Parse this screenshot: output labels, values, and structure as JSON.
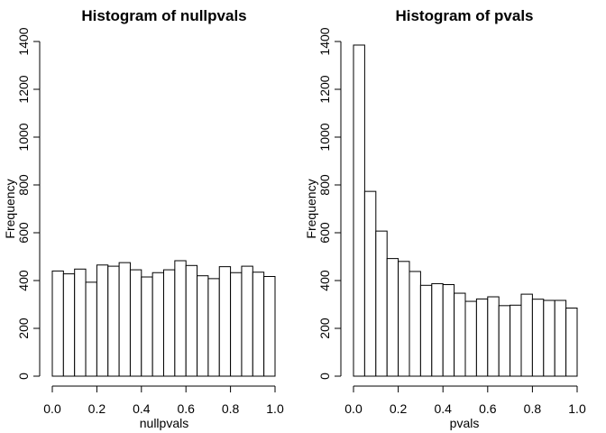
{
  "chart_data": [
    {
      "type": "bar",
      "title": "Histogram of nullpvals",
      "xlabel": "nullpvals",
      "ylabel": "Frequency",
      "xlim": [
        0,
        1
      ],
      "ylim": [
        0,
        1400
      ],
      "x_ticks": [
        "0.0",
        "0.2",
        "0.4",
        "0.6",
        "0.8",
        "1.0"
      ],
      "y_ticks": [
        "0",
        "200",
        "400",
        "600",
        "800",
        "1000",
        "1200",
        "1400"
      ],
      "bin_width": 0.05,
      "bin_starts": [
        0,
        0.05,
        0.1,
        0.15,
        0.2,
        0.25,
        0.3,
        0.35,
        0.4,
        0.45,
        0.5,
        0.55,
        0.6,
        0.65,
        0.7,
        0.75,
        0.8,
        0.85,
        0.9,
        0.95
      ],
      "values": [
        440,
        428,
        448,
        393,
        465,
        460,
        475,
        445,
        415,
        433,
        445,
        483,
        463,
        420,
        408,
        458,
        433,
        460,
        435,
        417
      ]
    },
    {
      "type": "bar",
      "title": "Histogram of pvals",
      "xlabel": "pvals",
      "ylabel": "Frequency",
      "xlim": [
        0,
        1
      ],
      "ylim": [
        0,
        1400
      ],
      "x_ticks": [
        "0.0",
        "0.2",
        "0.4",
        "0.6",
        "0.8",
        "1.0"
      ],
      "y_ticks": [
        "0",
        "200",
        "400",
        "600",
        "800",
        "1000",
        "1200",
        "1400"
      ],
      "bin_width": 0.05,
      "bin_starts": [
        0,
        0.05,
        0.1,
        0.15,
        0.2,
        0.25,
        0.3,
        0.35,
        0.4,
        0.45,
        0.5,
        0.55,
        0.6,
        0.65,
        0.7,
        0.75,
        0.8,
        0.85,
        0.9,
        0.95
      ],
      "values": [
        1385,
        773,
        607,
        492,
        480,
        438,
        380,
        387,
        383,
        347,
        313,
        323,
        332,
        295,
        297,
        343,
        322,
        317,
        317,
        285
      ]
    }
  ]
}
